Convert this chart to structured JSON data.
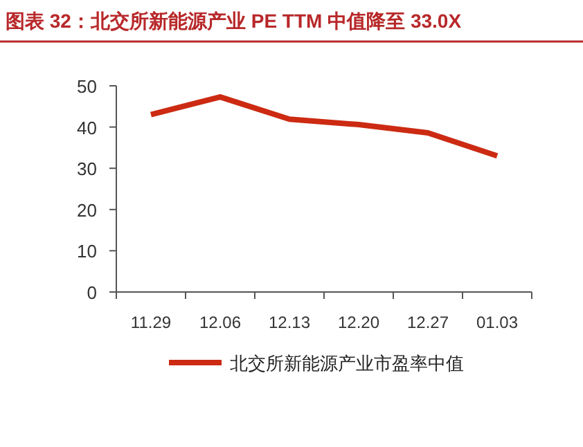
{
  "chart_data": {
    "type": "line",
    "title": "图表 32：北交所新能源产业 PE TTM 中值降至 33.0X",
    "categories": [
      "11.29",
      "12.06",
      "12.13",
      "12.20",
      "12.27",
      "01.03"
    ],
    "series": [
      {
        "name": "北交所新能源产业市盈率中值",
        "color": "#cc2a12",
        "values": [
          43.0,
          47.3,
          41.9,
          40.6,
          38.6,
          33.0
        ]
      }
    ],
    "ylim": [
      0,
      50
    ],
    "yticks": [
      0,
      10,
      20,
      30,
      40,
      50
    ],
    "grid": false,
    "legend": "bottom",
    "marker": "none",
    "line_style": "solid"
  }
}
